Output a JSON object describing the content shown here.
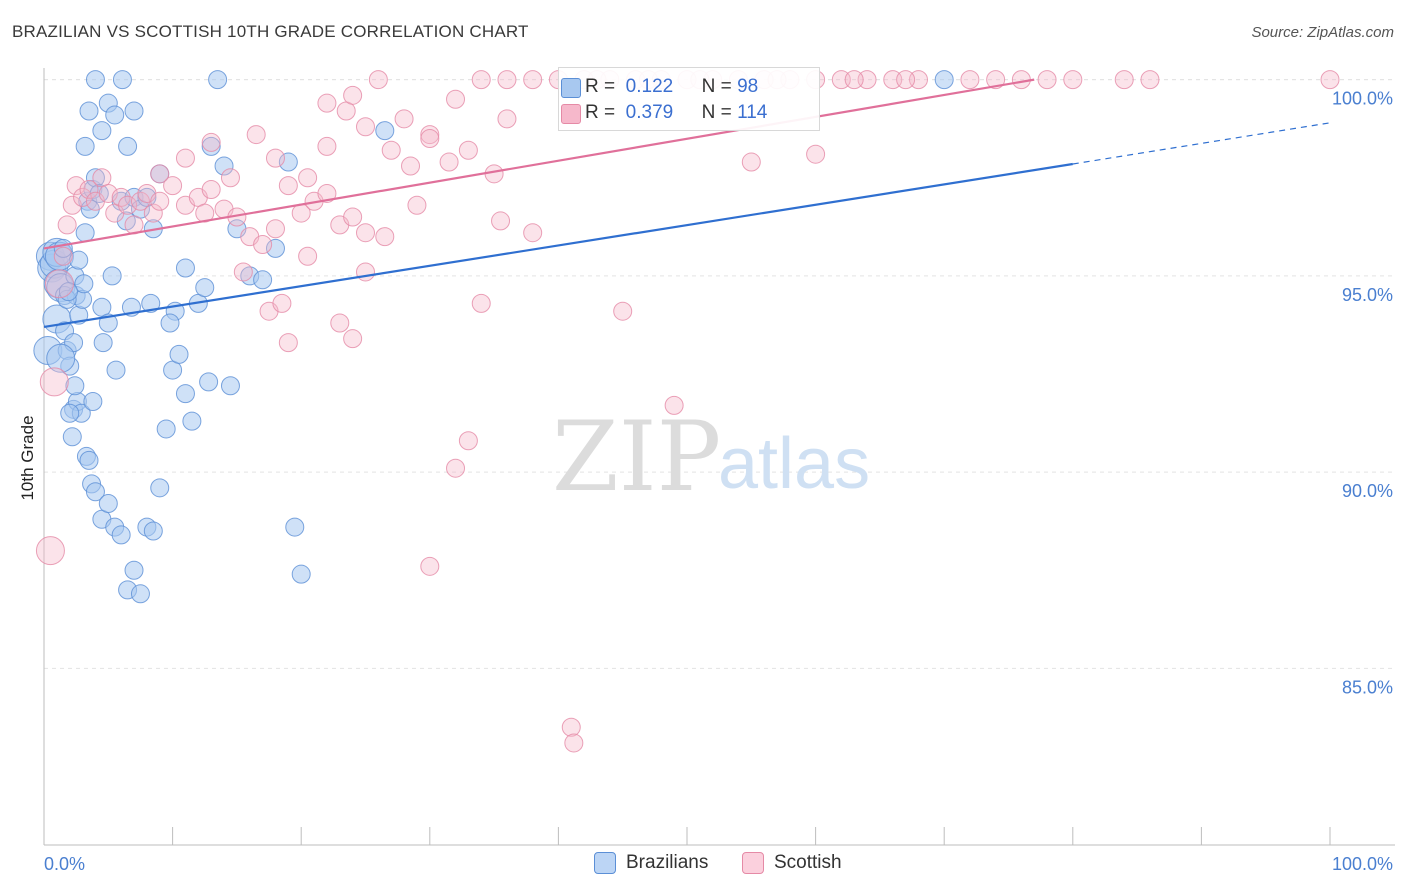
{
  "title": "BRAZILIAN VS SCOTTISH 10TH GRADE CORRELATION CHART",
  "source": "Source: ZipAtlas.com",
  "watermark": {
    "zip": "ZIP",
    "atlas": "atlas"
  },
  "legend": {
    "r_label": "R =",
    "n_label": "N =",
    "series": [
      {
        "r": "0.122",
        "n": "98"
      },
      {
        "r": "0.379",
        "n": "114"
      }
    ]
  },
  "bottom_legend": [
    "Brazilians",
    "Scottish"
  ],
  "colors": {
    "blue_fill": "#a8c8f0",
    "blue_stroke": "#5b8fd6",
    "blue_line": "#2f6fd0",
    "pink_fill": "#f6b8cb",
    "pink_stroke": "#e58aa6",
    "pink_line": "#e0709a"
  },
  "chart_data": {
    "type": "scatter",
    "title": "BRAZILIAN VS SCOTTISH 10TH GRADE CORRELATION CHART",
    "xlabel": "",
    "ylabel": "10th Grade",
    "xlim": [
      0,
      100
    ],
    "ylim": [
      80.5,
      100.5
    ],
    "x_tick_labels": [
      {
        "v": 0,
        "label": "0.0%"
      },
      {
        "v": 100,
        "label": "100.0%"
      }
    ],
    "y_ticks": [
      {
        "v": 85,
        "label": "85.0%"
      },
      {
        "v": 90,
        "label": "90.0%"
      },
      {
        "v": 95,
        "label": "95.0%"
      },
      {
        "v": 100,
        "label": "100.0%"
      }
    ],
    "grid": true,
    "series": [
      {
        "name": "Brazilians",
        "r": 0.122,
        "n": 98,
        "trend": {
          "x0": 0,
          "y0": 93.7,
          "x1": 80,
          "y1": 97.85,
          "dash_to_x": 100,
          "dash_to_y": 98.9
        },
        "points": [
          [
            0.3,
            93.1
          ],
          [
            0.5,
            95.5
          ],
          [
            0.6,
            95.2
          ],
          [
            0.8,
            95.3
          ],
          [
            1.0,
            95.6
          ],
          [
            1.1,
            94.8
          ],
          [
            1.2,
            95.5
          ],
          [
            1.3,
            94.7
          ],
          [
            1.5,
            95.7
          ],
          [
            1.6,
            94.5
          ],
          [
            1.0,
            93.9
          ],
          [
            1.6,
            93.6
          ],
          [
            1.8,
            93.1
          ],
          [
            2.0,
            92.7
          ],
          [
            2.3,
            93.3
          ],
          [
            2.4,
            95.0
          ],
          [
            2.5,
            94.5
          ],
          [
            2.7,
            94.0
          ],
          [
            3.0,
            94.4
          ],
          [
            3.2,
            96.1
          ],
          [
            3.4,
            96.9
          ],
          [
            3.6,
            96.7
          ],
          [
            3.8,
            97.2
          ],
          [
            4.0,
            97.5
          ],
          [
            4.3,
            97.1
          ],
          [
            4.5,
            94.2
          ],
          [
            5.0,
            93.8
          ],
          [
            5.3,
            95.0
          ],
          [
            5.6,
            92.6
          ],
          [
            6.0,
            96.9
          ],
          [
            6.4,
            96.4
          ],
          [
            7.0,
            97.0
          ],
          [
            7.5,
            96.7
          ],
          [
            8.0,
            97.0
          ],
          [
            8.5,
            96.2
          ],
          [
            9.0,
            97.6
          ],
          [
            3.5,
            99.2
          ],
          [
            4.0,
            100.0
          ],
          [
            4.5,
            98.7
          ],
          [
            5.0,
            99.4
          ],
          [
            5.5,
            99.1
          ],
          [
            6.1,
            100.0
          ],
          [
            6.5,
            98.3
          ],
          [
            7.0,
            99.2
          ],
          [
            3.2,
            98.3
          ],
          [
            2.3,
            91.6
          ],
          [
            2.6,
            91.8
          ],
          [
            2.9,
            91.5
          ],
          [
            3.3,
            90.4
          ],
          [
            3.5,
            90.3
          ],
          [
            3.7,
            89.7
          ],
          [
            4.0,
            89.5
          ],
          [
            4.5,
            88.8
          ],
          [
            5.0,
            89.2
          ],
          [
            5.5,
            88.6
          ],
          [
            6.0,
            88.4
          ],
          [
            6.5,
            87.0
          ],
          [
            7.0,
            87.5
          ],
          [
            7.5,
            86.9
          ],
          [
            8.0,
            88.6
          ],
          [
            8.5,
            88.5
          ],
          [
            9.0,
            89.6
          ],
          [
            9.5,
            91.1
          ],
          [
            10.0,
            92.6
          ],
          [
            10.5,
            93.0
          ],
          [
            11.0,
            92.0
          ],
          [
            11.5,
            91.3
          ],
          [
            12.0,
            94.3
          ],
          [
            12.5,
            94.7
          ],
          [
            11.0,
            95.2
          ],
          [
            13.0,
            98.3
          ],
          [
            13.5,
            100.0
          ],
          [
            14.0,
            97.8
          ],
          [
            15.0,
            96.2
          ],
          [
            16.0,
            95.0
          ],
          [
            17.0,
            94.9
          ],
          [
            18.0,
            95.7
          ],
          [
            19.0,
            97.9
          ],
          [
            19.5,
            88.6
          ],
          [
            20.0,
            87.4
          ],
          [
            26.5,
            98.7
          ],
          [
            2.0,
            91.5
          ],
          [
            2.2,
            90.9
          ],
          [
            1.8,
            94.4
          ],
          [
            2.7,
            95.4
          ],
          [
            3.1,
            94.8
          ],
          [
            3.8,
            91.8
          ],
          [
            1.3,
            92.9
          ],
          [
            4.6,
            93.3
          ],
          [
            1.9,
            94.6
          ],
          [
            8.3,
            94.3
          ],
          [
            10.2,
            94.1
          ],
          [
            12.8,
            92.3
          ],
          [
            6.8,
            94.2
          ],
          [
            9.8,
            93.8
          ],
          [
            14.5,
            92.2
          ],
          [
            70.0,
            100.0
          ],
          [
            2.4,
            92.2
          ]
        ]
      },
      {
        "name": "Scottish",
        "r": 0.379,
        "n": 114,
        "trend": {
          "x0": 0,
          "y0": 95.7,
          "x1": 77,
          "y1": 100.0
        },
        "points": [
          [
            0.5,
            88.0
          ],
          [
            0.8,
            92.3
          ],
          [
            1.2,
            94.8
          ],
          [
            1.5,
            95.5
          ],
          [
            1.8,
            96.3
          ],
          [
            2.2,
            96.8
          ],
          [
            2.5,
            97.3
          ],
          [
            3.0,
            97.0
          ],
          [
            3.5,
            97.2
          ],
          [
            4.0,
            96.9
          ],
          [
            4.5,
            97.5
          ],
          [
            5.0,
            97.1
          ],
          [
            5.5,
            96.6
          ],
          [
            6.0,
            97.0
          ],
          [
            6.5,
            96.8
          ],
          [
            7.0,
            96.3
          ],
          [
            7.5,
            96.9
          ],
          [
            8.0,
            97.1
          ],
          [
            8.5,
            96.6
          ],
          [
            9.0,
            96.9
          ],
          [
            10.0,
            97.3
          ],
          [
            11.0,
            96.8
          ],
          [
            12.0,
            97.0
          ],
          [
            12.5,
            96.6
          ],
          [
            13.0,
            97.2
          ],
          [
            14.0,
            96.7
          ],
          [
            15.0,
            96.5
          ],
          [
            16.0,
            96.0
          ],
          [
            17.0,
            95.8
          ],
          [
            18.0,
            96.2
          ],
          [
            19.0,
            97.3
          ],
          [
            20.0,
            96.6
          ],
          [
            21.0,
            96.9
          ],
          [
            22.0,
            97.1
          ],
          [
            23.0,
            96.3
          ],
          [
            24.0,
            96.5
          ],
          [
            25.0,
            96.1
          ],
          [
            9.0,
            97.6
          ],
          [
            11.0,
            98.0
          ],
          [
            13.0,
            98.4
          ],
          [
            14.5,
            97.5
          ],
          [
            16.5,
            98.6
          ],
          [
            18.0,
            98.0
          ],
          [
            20.5,
            97.5
          ],
          [
            22.0,
            98.3
          ],
          [
            23.5,
            99.2
          ],
          [
            25.0,
            98.8
          ],
          [
            27.0,
            98.2
          ],
          [
            28.5,
            97.8
          ],
          [
            30.0,
            98.6
          ],
          [
            31.5,
            97.9
          ],
          [
            33.0,
            98.2
          ],
          [
            35.0,
            97.6
          ],
          [
            36.0,
            99.0
          ],
          [
            38.0,
            100.0
          ],
          [
            40.0,
            100.0
          ],
          [
            42.0,
            100.0
          ],
          [
            44.0,
            100.0
          ],
          [
            46.0,
            100.0
          ],
          [
            48.0,
            100.0
          ],
          [
            50.0,
            100.0
          ],
          [
            52.0,
            100.0
          ],
          [
            54.0,
            100.0
          ],
          [
            56.0,
            100.0
          ],
          [
            58.0,
            100.0
          ],
          [
            60.0,
            100.0
          ],
          [
            62.0,
            100.0
          ],
          [
            64.0,
            100.0
          ],
          [
            66.0,
            100.0
          ],
          [
            68.0,
            100.0
          ],
          [
            72.0,
            100.0
          ],
          [
            74.0,
            100.0
          ],
          [
            76.0,
            100.0
          ],
          [
            78.0,
            100.0
          ],
          [
            80.0,
            100.0
          ],
          [
            84.0,
            100.0
          ],
          [
            86.0,
            100.0
          ],
          [
            100.0,
            100.0
          ],
          [
            26.0,
            100.0
          ],
          [
            28.0,
            99.0
          ],
          [
            30.0,
            98.5
          ],
          [
            32.0,
            99.5
          ],
          [
            22.0,
            99.4
          ],
          [
            24.0,
            99.6
          ],
          [
            34.0,
            100.0
          ],
          [
            36.0,
            100.0
          ],
          [
            15.5,
            95.1
          ],
          [
            17.5,
            94.1
          ],
          [
            19.0,
            93.3
          ],
          [
            23.0,
            93.8
          ],
          [
            24.0,
            93.4
          ],
          [
            34.0,
            94.3
          ],
          [
            45.0,
            94.1
          ],
          [
            49.0,
            91.7
          ],
          [
            33.0,
            90.8
          ],
          [
            32.0,
            90.1
          ],
          [
            30.0,
            87.6
          ],
          [
            41.0,
            83.5
          ],
          [
            41.2,
            83.1
          ],
          [
            20.5,
            95.5
          ],
          [
            25.0,
            95.1
          ],
          [
            38.0,
            96.1
          ],
          [
            55.0,
            97.9
          ],
          [
            60.0,
            98.1
          ],
          [
            43.0,
            100.0
          ],
          [
            47.0,
            100.0
          ],
          [
            51.0,
            100.0
          ],
          [
            57.0,
            100.0
          ],
          [
            63.0,
            100.0
          ],
          [
            67.0,
            100.0
          ],
          [
            18.5,
            94.3
          ],
          [
            26.5,
            96.0
          ],
          [
            29.0,
            96.8
          ],
          [
            35.5,
            96.4
          ]
        ]
      }
    ]
  }
}
